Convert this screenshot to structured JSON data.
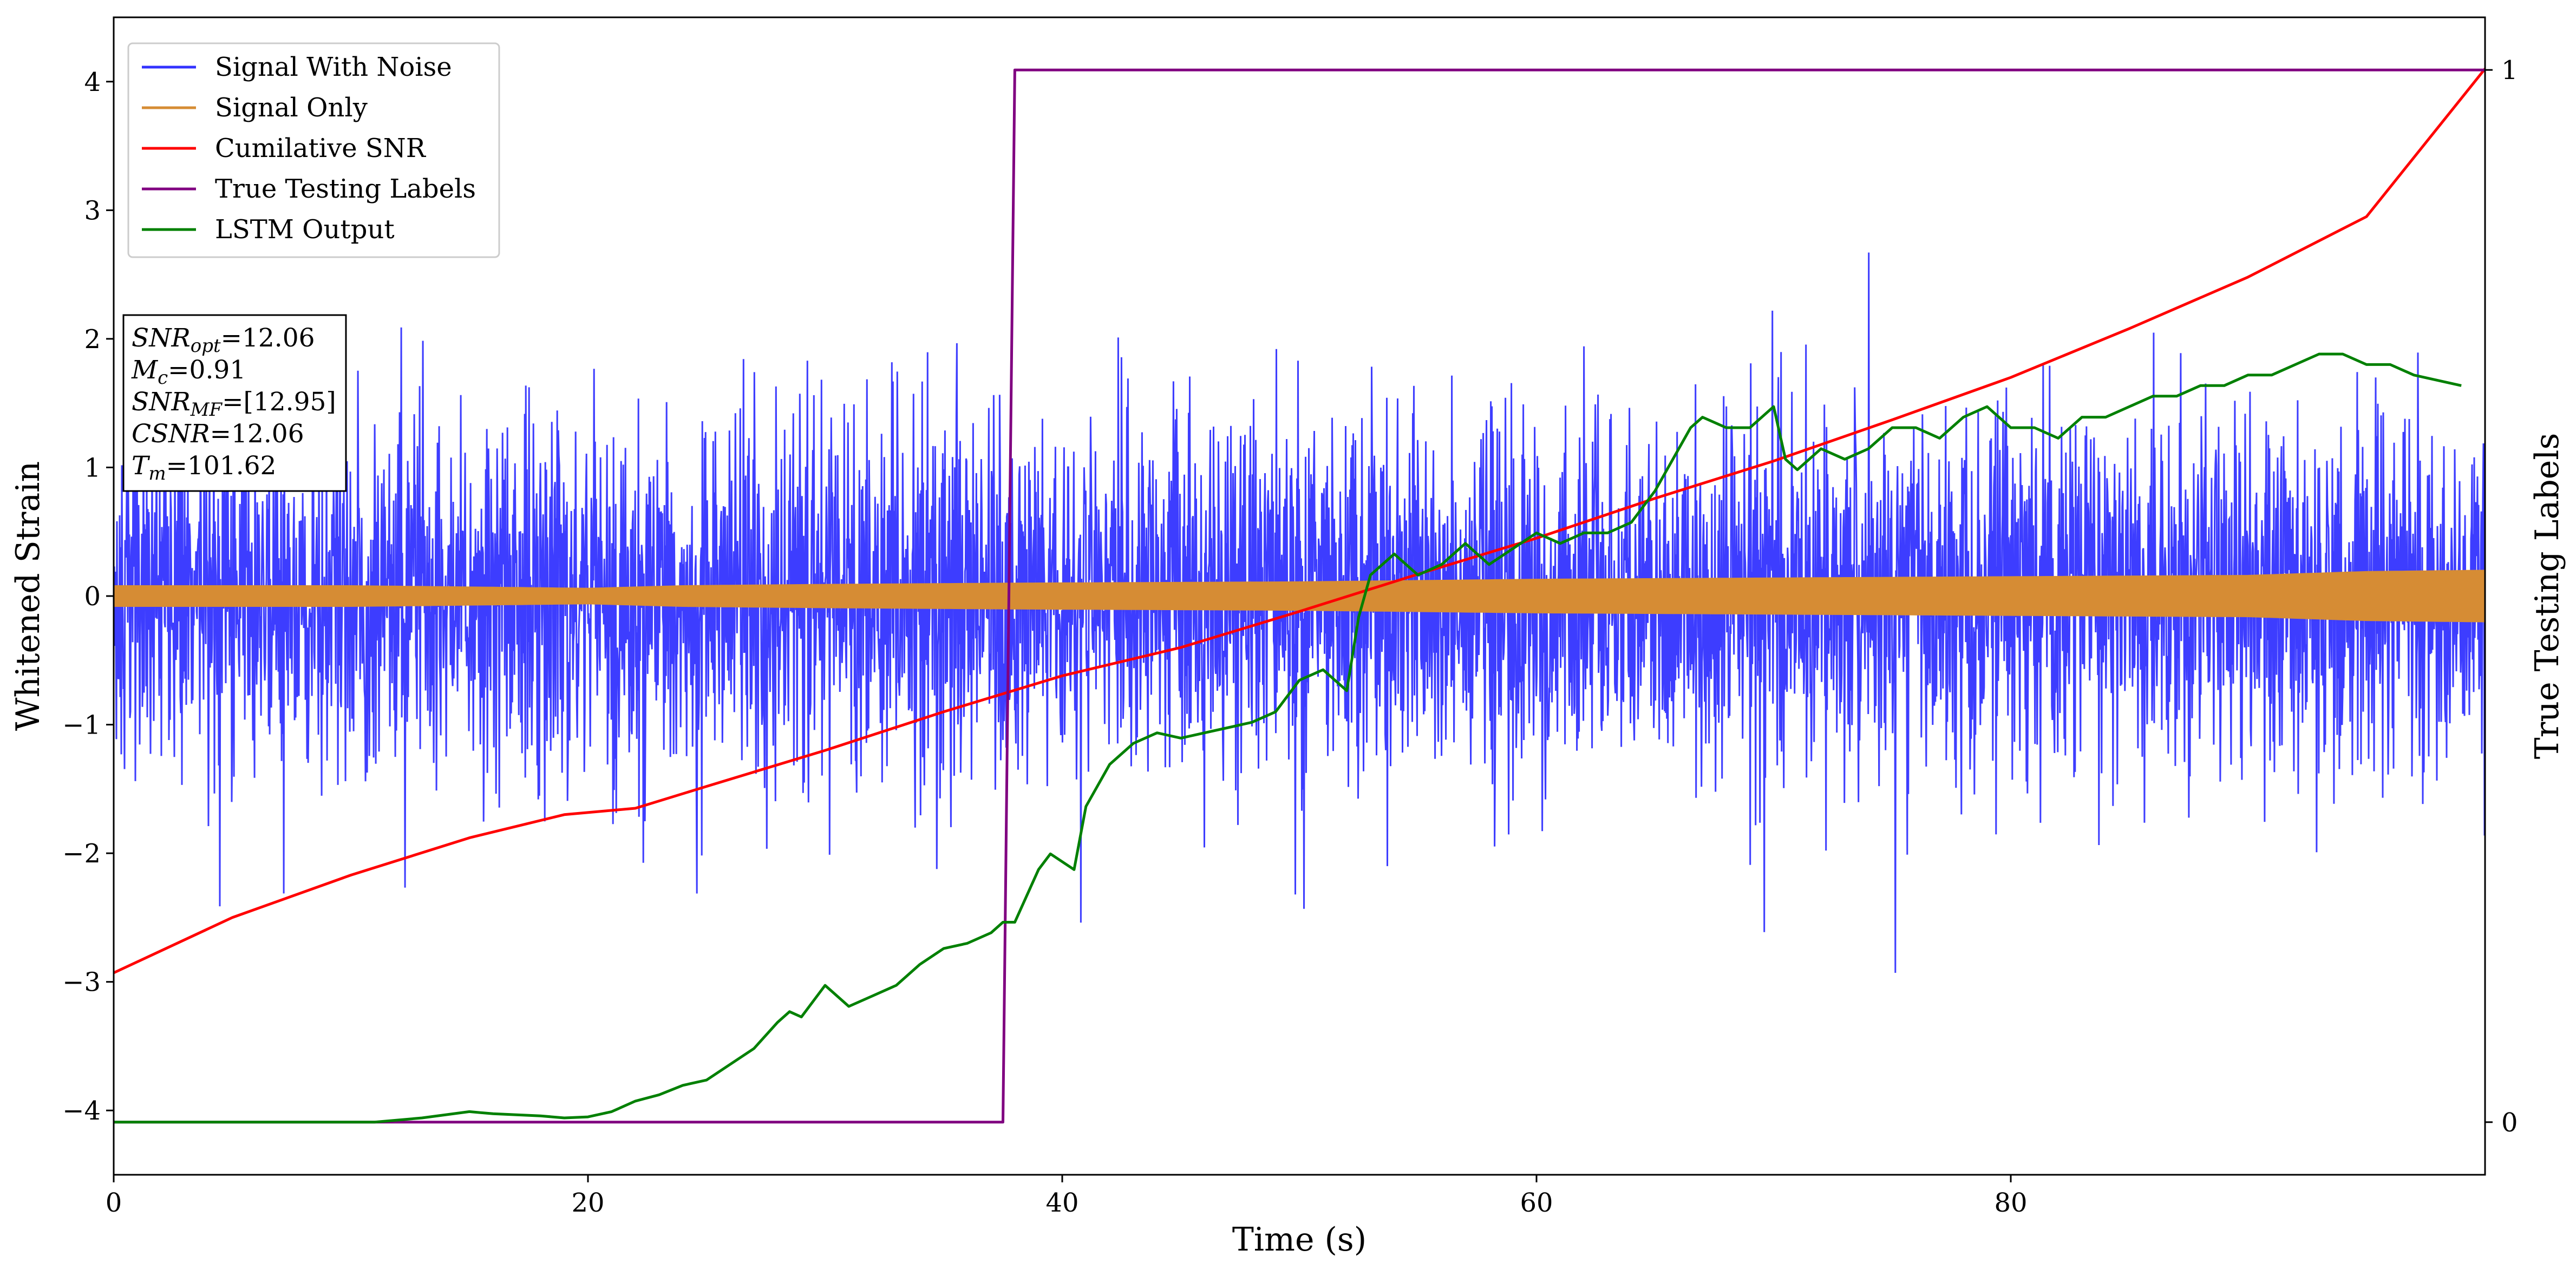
{
  "chart_data": {
    "type": "line",
    "xlabel": "Time (s)",
    "ylabel": "Whitened Strain",
    "y2label": "True Testing Labels",
    "xlim": [
      0,
      100
    ],
    "ylim": [
      -4.5,
      4.5
    ],
    "y2lim": [
      -0.05,
      1.05
    ],
    "x_ticks": [
      0,
      20,
      40,
      60,
      80
    ],
    "y_ticks": [
      -4,
      -3,
      -2,
      -1,
      0,
      1,
      2,
      3,
      4
    ],
    "y2_ticks": [
      0,
      1
    ],
    "grid": false,
    "legend_position": "top-left",
    "annotation": [
      {
        "base": "SNR",
        "sub": "opt",
        "rest": "=12.06"
      },
      {
        "base": "M",
        "sub": "c",
        "rest": "=0.91"
      },
      {
        "base": "SNR",
        "sub": "MF",
        "rest": "=[12.95]"
      },
      {
        "base": "CSNR",
        "sub": "",
        "rest": "=12.06"
      },
      {
        "base": "T",
        "sub": "m",
        "rest": "=101.62"
      }
    ],
    "series": [
      {
        "name": "Signal With Noise",
        "color": "#3333ff",
        "axis": "left",
        "kind": "noise",
        "noise_rms": 0.7,
        "max_value": 4.1,
        "min_value": -2.93
      },
      {
        "name": "Signal Only",
        "color": "#d68c34",
        "axis": "left",
        "kind": "envelope",
        "x": [
          0,
          10,
          20,
          24,
          30,
          38,
          50,
          60,
          70,
          80,
          90,
          95,
          100
        ],
        "amplitude": [
          0.08,
          0.08,
          0.06,
          0.08,
          0.09,
          0.1,
          0.11,
          0.13,
          0.14,
          0.15,
          0.16,
          0.19,
          0.2
        ]
      },
      {
        "name": "Cumilative SNR",
        "color": "#ff0000",
        "axis": "left",
        "x": [
          0,
          5,
          10,
          15,
          19,
          22,
          25,
          30,
          35,
          40,
          45,
          50,
          55,
          60,
          65,
          70,
          75,
          80,
          85,
          90,
          95,
          100
        ],
        "y": [
          -2.93,
          -2.5,
          -2.17,
          -1.88,
          -1.7,
          -1.65,
          -1.48,
          -1.2,
          -0.9,
          -0.62,
          -0.4,
          -0.12,
          0.17,
          0.45,
          0.76,
          1.05,
          1.37,
          1.7,
          2.08,
          2.48,
          2.95,
          4.1
        ]
      },
      {
        "name": "True Testing Labels",
        "color": "#800080",
        "axis": "right",
        "x": [
          0,
          37.5,
          38.0,
          100
        ],
        "y": [
          0,
          0,
          1,
          1
        ]
      },
      {
        "name": "LSTM Output",
        "color": "#008000",
        "axis": "right",
        "x": [
          0,
          11,
          13,
          15,
          16,
          18,
          19,
          20,
          21,
          22,
          23,
          24,
          25,
          26,
          27,
          28,
          28.5,
          29,
          30,
          31,
          32,
          33,
          34,
          35,
          36,
          37,
          37.5,
          38,
          39,
          39.5,
          40.5,
          41,
          42,
          43,
          44,
          45,
          46,
          47,
          48,
          49,
          50,
          51,
          52,
          52.5,
          53,
          54,
          55,
          56,
          57,
          58,
          59,
          60,
          61,
          62,
          63,
          64,
          65,
          66,
          66.5,
          67,
          68,
          69,
          70,
          70.5,
          71,
          72,
          73,
          74,
          75,
          76,
          77,
          78,
          79,
          80,
          81,
          82,
          83,
          84,
          85,
          86,
          87,
          88,
          89,
          90,
          91,
          92,
          93,
          94,
          95,
          96,
          97,
          98,
          99
        ],
        "y": [
          0,
          0,
          0.004,
          0.01,
          0.008,
          0.006,
          0.004,
          0.005,
          0.01,
          0.02,
          0.026,
          0.035,
          0.04,
          0.055,
          0.07,
          0.095,
          0.105,
          0.1,
          0.13,
          0.11,
          0.12,
          0.13,
          0.15,
          0.165,
          0.17,
          0.18,
          0.19,
          0.19,
          0.24,
          0.255,
          0.24,
          0.3,
          0.34,
          0.36,
          0.37,
          0.365,
          0.37,
          0.375,
          0.38,
          0.39,
          0.42,
          0.43,
          0.41,
          0.48,
          0.52,
          0.54,
          0.52,
          0.53,
          0.55,
          0.53,
          0.545,
          0.56,
          0.55,
          0.56,
          0.56,
          0.57,
          0.6,
          0.64,
          0.66,
          0.67,
          0.66,
          0.66,
          0.68,
          0.63,
          0.62,
          0.64,
          0.63,
          0.64,
          0.66,
          0.66,
          0.65,
          0.67,
          0.68,
          0.66,
          0.66,
          0.65,
          0.67,
          0.67,
          0.68,
          0.69,
          0.69,
          0.7,
          0.7,
          0.71,
          0.71,
          0.72,
          0.73,
          0.73,
          0.72,
          0.72,
          0.71,
          0.705,
          0.7
        ]
      }
    ]
  }
}
